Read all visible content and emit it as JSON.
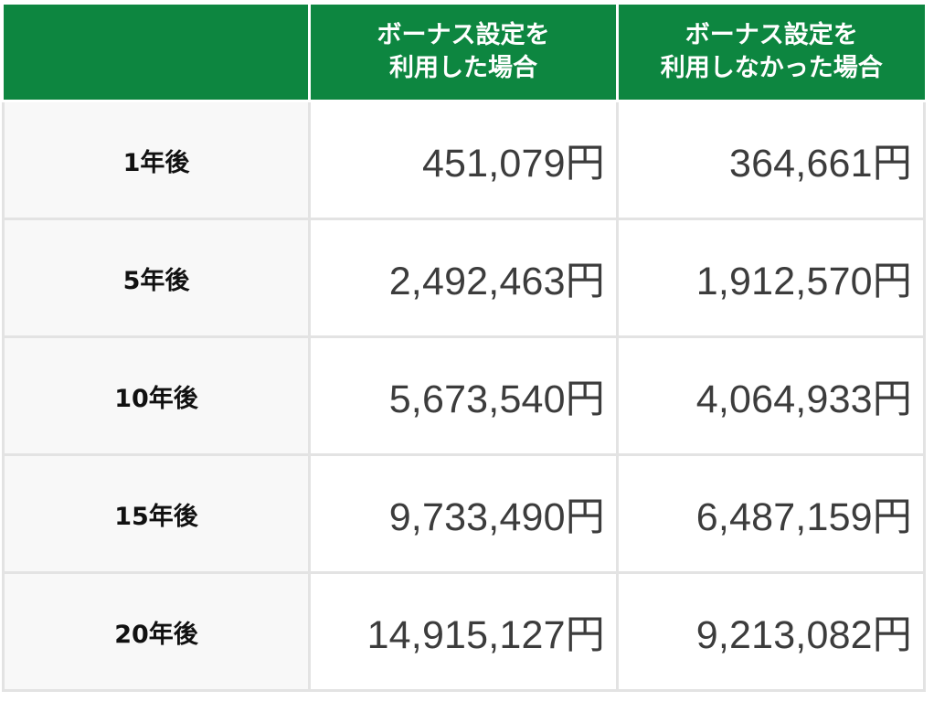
{
  "header": {
    "corner": "",
    "col_with": [
      "ボーナス設定を",
      "利用した場合"
    ],
    "col_without": [
      "ボーナス設定を",
      "利用しなかった場合"
    ]
  },
  "rows": [
    {
      "label": "1年後",
      "with": "451,079円",
      "without": "364,661円"
    },
    {
      "label": "5年後",
      "with": "2,492,463円",
      "without": "1,912,570円"
    },
    {
      "label": "10年後",
      "with": "5,673,540円",
      "without": "4,064,933円"
    },
    {
      "label": "15年後",
      "with": "9,733,490円",
      "without": "6,487,159円"
    },
    {
      "label": "20年後",
      "with": "14,915,127円",
      "without": "9,213,082円"
    }
  ]
}
